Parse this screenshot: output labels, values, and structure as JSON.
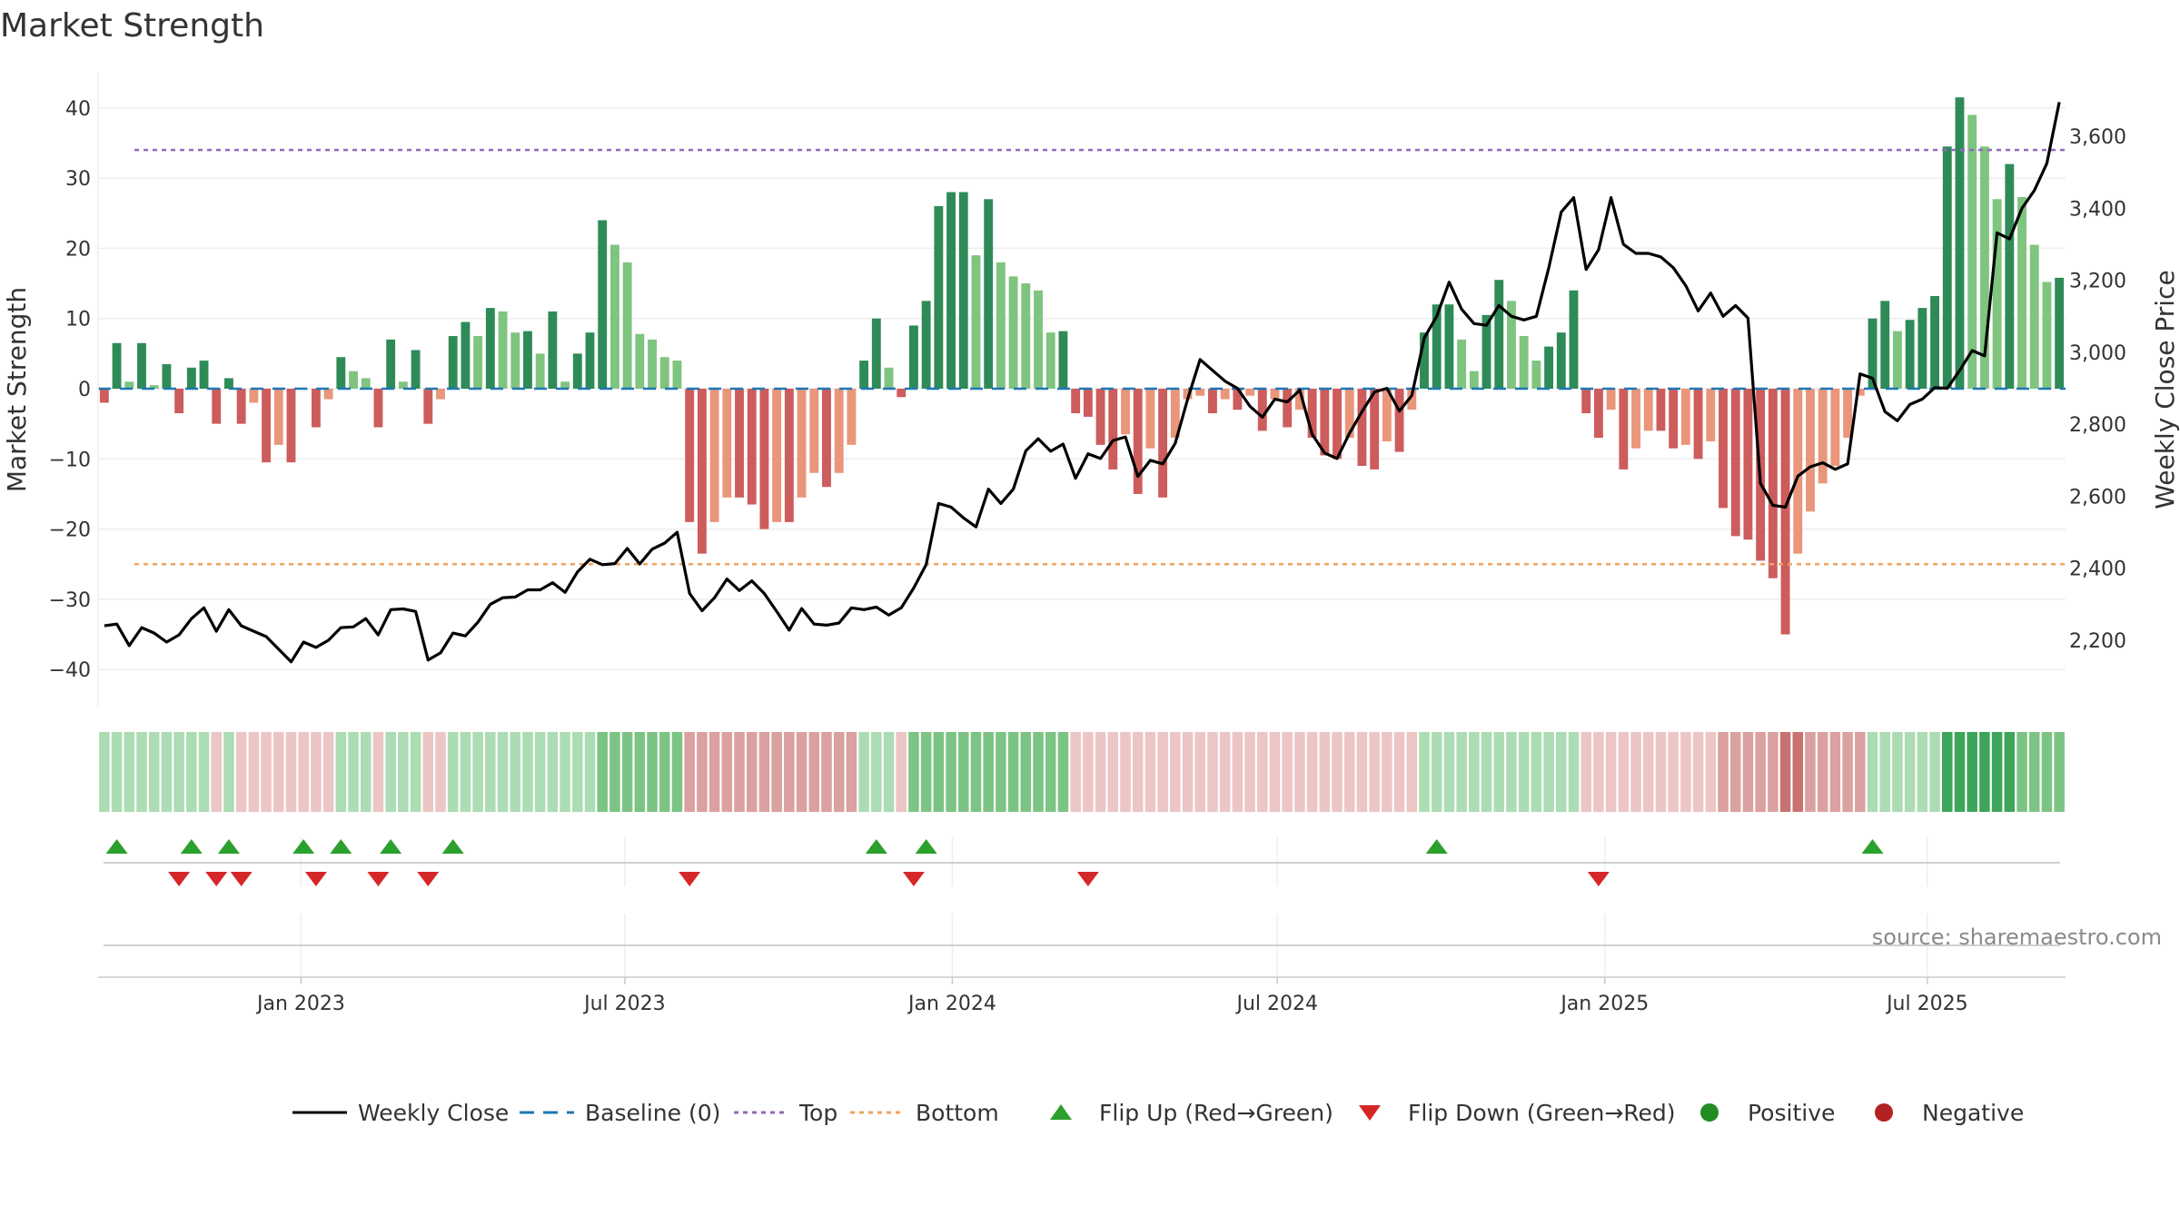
{
  "title": "Market Strength",
  "source": "source: sharemaestro.com",
  "colors": {
    "strong_green": "#2e8b57",
    "light_green": "#7fc47f",
    "strong_red": "#cd5c5c",
    "light_red": "#e9967a",
    "price_line": "#000000",
    "baseline": "#1f77b4",
    "top_line": "#9467bd",
    "bottom_line": "#f0a35e",
    "flip_up": "#2ca02c",
    "flip_down": "#d62728",
    "positive": "#228b22",
    "negative": "#b22222"
  },
  "legend": [
    {
      "key": "weekly_close",
      "label": "Weekly Close",
      "symbol": "line"
    },
    {
      "key": "baseline",
      "label": "Baseline (0)",
      "symbol": "dash"
    },
    {
      "key": "top",
      "label": "Top",
      "symbol": "dot-purple"
    },
    {
      "key": "bottom",
      "label": "Bottom",
      "symbol": "dot-orange"
    },
    {
      "key": "flip_up",
      "label": "Flip Up (Red→Green)",
      "symbol": "tri-up"
    },
    {
      "key": "flip_down",
      "label": "Flip Down (Green→Red)",
      "symbol": "tri-down"
    },
    {
      "key": "positive",
      "label": "Positive",
      "symbol": "circle-green"
    },
    {
      "key": "negative",
      "label": "Negative",
      "symbol": "circle-red"
    }
  ],
  "chart_data": {
    "type": "bar",
    "title": "Market Strength",
    "ylabel_left": "Market Strength",
    "ylabel_right": "Weekly Close Price",
    "ylim_left": [
      -45,
      44
    ],
    "ylim_right": [
      2050,
      3750
    ],
    "yticks_left": [
      "40",
      "30",
      "20",
      "10",
      "0",
      "−10",
      "−20",
      "−30",
      "−40"
    ],
    "yticks_right": [
      "3,600",
      "3,400",
      "3,200",
      "3,000",
      "2,800",
      "2,600",
      "2,400",
      "2,200"
    ],
    "xtick_labels": [
      "Jan 2023",
      "Jul 2023",
      "Jan 2024",
      "Jul 2024",
      "Jan 2025",
      "Jul 2025"
    ],
    "top_threshold": 34,
    "bottom_threshold": -25,
    "weeks": 158,
    "strength": [
      -2,
      6.5,
      1,
      6.5,
      0.5,
      3.5,
      -3.5,
      3,
      4,
      -5,
      1.5,
      -5,
      -2,
      -10.5,
      -8,
      -10.5,
      0,
      -5.5,
      -1.5,
      4.5,
      2.5,
      1.5,
      -5.5,
      7,
      1,
      5.5,
      -5,
      -1.5,
      7.5,
      9.5,
      7.5,
      11.5,
      11,
      8,
      8.2,
      5,
      11,
      1,
      5,
      8,
      24,
      20.5,
      18,
      7.8,
      7,
      4.5,
      4,
      -19,
      -23.5,
      -19,
      -15.5,
      -15.5,
      -16.5,
      -20,
      -19,
      -19,
      -15.5,
      -12,
      -14,
      -12,
      -8,
      4,
      10,
      3,
      -1.2,
      9,
      12.5,
      26,
      28,
      28,
      19,
      27,
      18,
      16,
      15,
      14,
      8,
      8.2,
      -3.5,
      -4,
      -8,
      -11.5,
      -6.5,
      -15,
      -8.5,
      -15.5,
      -7,
      -1.5,
      -1,
      -3.5,
      -1.5,
      -3,
      -1,
      -6,
      -1.5,
      -5.5,
      -3,
      -7,
      -9.5,
      -10,
      -7,
      -11,
      -11.5,
      -7.5,
      -9,
      -3,
      8,
      12,
      12,
      7,
      2.5,
      10.5,
      15.5,
      12.5,
      7.5,
      4,
      6,
      8,
      14,
      -3.5,
      -7,
      -3,
      -11.5,
      -8.5,
      -6,
      -6,
      -8.5,
      -8,
      -10,
      -7.5,
      -17,
      -21,
      -21.5,
      -24.5,
      -27,
      -35,
      -23.5,
      -17.5,
      -13.5,
      -11,
      -7,
      -1,
      10,
      12.5,
      8.2,
      9.8,
      11.5,
      13.2,
      34.5,
      41.5,
      39,
      34.5,
      27,
      32,
      27.3,
      20.5,
      15.2,
      15.8
    ],
    "weekly_close": [
      2240,
      2245,
      2185,
      2235,
      2220,
      2195,
      2215,
      2260,
      2290,
      2225,
      2285,
      2240,
      2225,
      2210,
      2175,
      2140,
      2195,
      2180,
      2200,
      2235,
      2237,
      2260,
      2215,
      2285,
      2287,
      2280,
      2145,
      2165,
      2220,
      2212,
      2250,
      2300,
      2318,
      2320,
      2340,
      2340,
      2360,
      2333,
      2390,
      2425,
      2410,
      2413,
      2455,
      2412,
      2453,
      2470,
      2500,
      2330,
      2282,
      2318,
      2370,
      2338,
      2365,
      2330,
      2280,
      2228,
      2288,
      2245,
      2242,
      2248,
      2290,
      2285,
      2292,
      2270,
      2290,
      2345,
      2410,
      2580,
      2570,
      2540,
      2515,
      2620,
      2580,
      2620,
      2726,
      2760,
      2725,
      2745,
      2650,
      2718,
      2705,
      2755,
      2765,
      2655,
      2700,
      2690,
      2747,
      2870,
      2980,
      2950,
      2920,
      2900,
      2850,
      2820,
      2870,
      2862,
      2895,
      2772,
      2720,
      2705,
      2775,
      2835,
      2890,
      2900,
      2837,
      2880,
      3040,
      3100,
      3195,
      3120,
      3080,
      3075,
      3130,
      3100,
      3090,
      3100,
      3235,
      3390,
      3430,
      3230,
      3285,
      3430,
      3300,
      3275,
      3275,
      3265,
      3235,
      3185,
      3115,
      3165,
      3100,
      3130,
      3095,
      2636,
      2575,
      2570,
      2656,
      2682,
      2693,
      2675,
      2690,
      2940,
      2928,
      2835,
      2810,
      2855,
      2870,
      2902,
      2900,
      2950,
      3005,
      2990,
      3332,
      3315,
      3400,
      3450,
      3525,
      3695
    ],
    "regime_band": [
      1,
      1,
      1,
      1,
      1,
      1,
      1,
      1,
      1,
      -1,
      1,
      -1,
      -1,
      -1,
      -1,
      -1,
      -1,
      -1,
      -1,
      1,
      1,
      1,
      -1,
      1,
      1,
      1,
      -1,
      -1,
      1,
      1,
      1,
      1,
      1,
      1,
      1,
      1,
      1,
      1,
      1,
      1,
      2,
      2,
      2,
      2,
      2,
      2,
      2,
      -2,
      -2,
      -2,
      -2,
      -2,
      -2,
      -2,
      -2,
      -2,
      -2,
      -2,
      -2,
      -2,
      -2,
      1,
      1,
      1,
      -1,
      2,
      2,
      2,
      2,
      2,
      2,
      2,
      2,
      2,
      2,
      2,
      2,
      2,
      -1,
      -1,
      -1,
      -1,
      -1,
      -1,
      -1,
      -1,
      -1,
      -1,
      -1,
      -1,
      -1,
      -1,
      -1,
      -1,
      -1,
      -1,
      -1,
      -1,
      -1,
      -1,
      -1,
      -1,
      -1,
      -1,
      -1,
      -1,
      1,
      1,
      1,
      1,
      1,
      1,
      1,
      1,
      1,
      1,
      1,
      1,
      1,
      -1,
      -1,
      -1,
      -1,
      -1,
      -1,
      -1,
      -1,
      -1,
      -1,
      -1,
      -2,
      -2,
      -2,
      -2,
      -2,
      -3,
      -3,
      -2,
      -2,
      -2,
      -2,
      -2,
      1,
      1,
      1,
      1,
      1,
      1,
      3,
      3,
      3,
      3,
      3,
      3,
      2,
      2,
      2,
      2
    ],
    "flip_up_weeks": [
      1,
      7,
      10,
      16,
      19,
      23,
      28,
      62,
      66,
      107,
      142
    ],
    "flip_down_weeks": [
      6,
      9,
      11,
      17,
      22,
      26,
      47,
      65,
      79,
      120
    ],
    "xtick_weeks": [
      16.3,
      42.3,
      68.6,
      94.7,
      121.0,
      146.9
    ]
  }
}
